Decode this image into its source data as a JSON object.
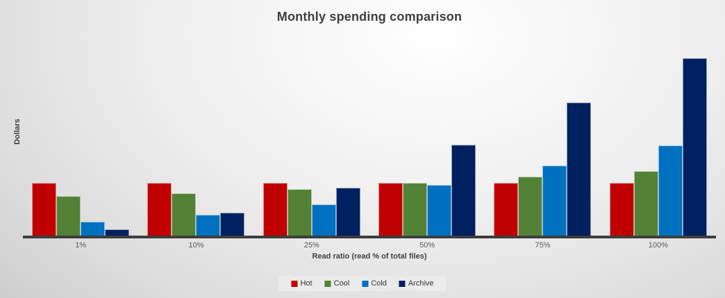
{
  "chart_data": {
    "type": "bar",
    "title": "Monthly spending comparison",
    "xlabel": "Read ratio (read % of total files)",
    "ylabel": "Dollars",
    "categories": [
      "1%",
      "10%",
      "25%",
      "50%",
      "75%",
      "100%"
    ],
    "series": [
      {
        "name": "Hot",
        "color": "#c00000",
        "values": [
          76,
          76,
          76,
          76,
          76,
          76
        ]
      },
      {
        "name": "Cool",
        "color": "#538135",
        "values": [
          57,
          61,
          67,
          76,
          85,
          93
        ]
      },
      {
        "name": "Cold",
        "color": "#0070c0",
        "values": [
          20,
          30,
          45,
          73,
          101,
          130
        ]
      },
      {
        "name": "Archive",
        "color": "#002060",
        "values": [
          9,
          33,
          69,
          131,
          192,
          256
        ]
      }
    ],
    "value_units": "relative (no numeric y-axis tick labels shown)",
    "ylim": [
      0,
      280
    ],
    "grid": false,
    "legend_position": "bottom",
    "axis_color": "#3d3d3d",
    "background_colors": {
      "center": "#ffffff",
      "edge": "#c3c3c3"
    }
  }
}
